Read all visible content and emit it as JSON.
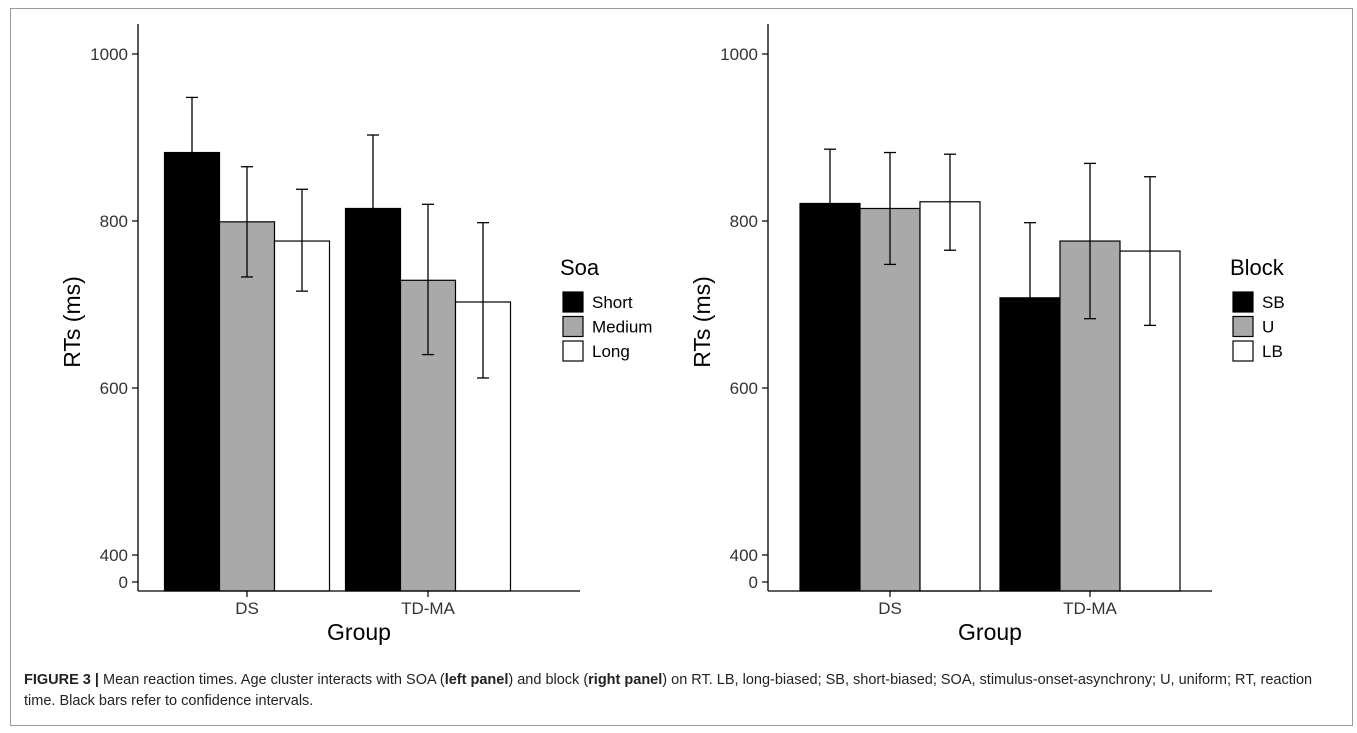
{
  "caption": {
    "label": "FIGURE 3 |",
    "text_1": " Mean reaction times. Age cluster interacts with SOA (",
    "bold_1": "left panel",
    "text_2": ") and block (",
    "bold_2": "right panel",
    "text_3": ") on RT. LB, long-biased; SB, short-biased; SOA, stimulus-onset-asynchrony; U, uniform; RT, reaction time. Black bars refer to confidence intervals."
  },
  "chart_data": [
    {
      "type": "bar",
      "xlabel": "Group",
      "ylabel": "RTs (ms)",
      "categories": [
        "DS",
        "TD-MA"
      ],
      "y_ticks": [
        0,
        400,
        600,
        800,
        1000
      ],
      "y_axis_break": [
        0,
        400
      ],
      "ylim": [
        0,
        1020
      ],
      "legend_title": "Soa",
      "legend_position": "right",
      "series": [
        {
          "name": "Short",
          "color": "#000000",
          "values": [
            882,
            815
          ],
          "ci_low": [
            748,
            727
          ],
          "ci_high": [
            948,
            903
          ]
        },
        {
          "name": "Medium",
          "color": "#a9a9a9",
          "values": [
            799,
            729
          ],
          "ci_low": [
            733,
            640
          ],
          "ci_high": [
            865,
            820
          ]
        },
        {
          "name": "Long",
          "color": "#ffffff",
          "values": [
            776,
            703
          ],
          "ci_low": [
            716,
            612
          ],
          "ci_high": [
            838,
            798
          ]
        }
      ]
    },
    {
      "type": "bar",
      "xlabel": "Group",
      "ylabel": "RTs (ms)",
      "categories": [
        "DS",
        "TD-MA"
      ],
      "y_ticks": [
        0,
        400,
        600,
        800,
        1000
      ],
      "y_axis_break": [
        0,
        400
      ],
      "ylim": [
        0,
        1020
      ],
      "legend_title": "Block",
      "legend_position": "right",
      "series": [
        {
          "name": "SB",
          "color": "#000000",
          "values": [
            821,
            708
          ],
          "ci_low": [
            755,
            620
          ],
          "ci_high": [
            886,
            798
          ]
        },
        {
          "name": "U",
          "color": "#a9a9a9",
          "values": [
            815,
            776
          ],
          "ci_low": [
            748,
            683
          ],
          "ci_high": [
            882,
            869
          ]
        },
        {
          "name": "LB",
          "color": "#ffffff",
          "values": [
            823,
            764
          ],
          "ci_low": [
            765,
            675
          ],
          "ci_high": [
            880,
            853
          ]
        }
      ]
    }
  ]
}
